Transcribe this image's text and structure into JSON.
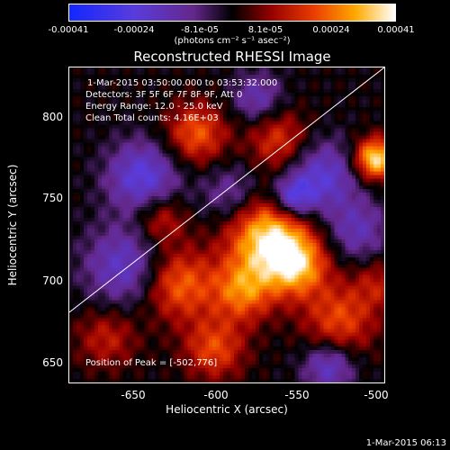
{
  "colorbar": {
    "ticks": [
      "-0.00041",
      "-0.00024",
      "-8.1e-05",
      "8.1e-05",
      "0.00024",
      "0.00041"
    ],
    "units": "(photons cm⁻² s⁻¹ asec⁻²)"
  },
  "title": "Reconstructed RHESSI Image",
  "info": {
    "time": "1-Mar-2015 03:50:00.000 to 03:53:32.000",
    "detectors": "Detectors: 3F 5F 6F 7F 8F 9F, Att 0",
    "energy": "Energy Range: 12.0 - 25.0 keV",
    "clean": "Clean     Total counts: 4.16E+03"
  },
  "peak": "Position of Peak = [-502,776]",
  "xaxis": {
    "label": "Heliocentric X (arcsec)",
    "ticks": [
      "-650",
      "-600",
      "-550",
      "-500"
    ]
  },
  "yaxis": {
    "label": "Heliocentric Y (arcsec)",
    "ticks": [
      "800",
      "750",
      "700",
      "650"
    ]
  },
  "timestamp": "1-Mar-2015 06:13",
  "colors": {
    "background": "#000000",
    "text": "#ffffff",
    "limb": "#ffffff"
  }
}
